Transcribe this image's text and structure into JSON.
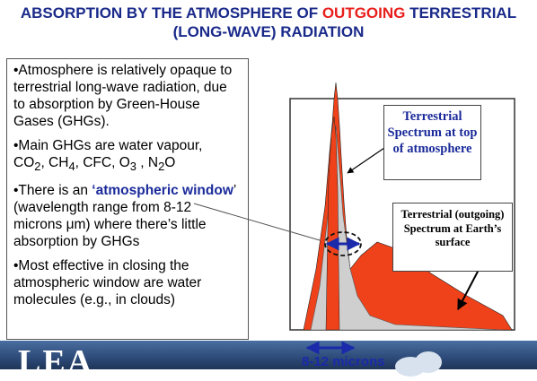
{
  "title": {
    "part1": "ABSORPTION BY THE ATMOSPHERE OF ",
    "highlight": "OUTGOING",
    "part2": " TERRESTRIAL",
    "line2": "(LONG-WAVE) RADIATION"
  },
  "bullets": {
    "b1": "•Atmosphere is relatively opaque to terrestrial long-wave radiation, due to absorption by Green-House Gases (GHGs).",
    "b2_prefix": "•Main GHGs are water vapour,",
    "b2_co": "CO",
    "b2_sub2": "2",
    "b2_ch": ", CH",
    "b2_sub4": "4",
    "b2_cfc": ", CFC, O",
    "b2_sub3": "3",
    "b2_no": " , N",
    "b2_sub2b": "2",
    "b2_o": "O",
    "b3_prefix": "•There is an ",
    "b3_highlight": "‘atmospheric window",
    "b3_rest": "’ (wavelength range from 8-12 microns μm) where there’s little absorption by GHGs",
    "b4": "•Most effective in closing the atmospheric window are water molecules (e.g., in clouds)"
  },
  "diagram": {
    "label_top": "Terrestrial Spectrum at top of atmosphere",
    "label_surface": "Terrestrial (outgoing) Spectrum at Earth’s surface",
    "window_label": "8-12 microns",
    "colors": {
      "red": "#f0421a",
      "grey": "#cfcfcf",
      "blue": "#1a2aaa"
    }
  },
  "footer": {
    "logo": "LEA"
  }
}
